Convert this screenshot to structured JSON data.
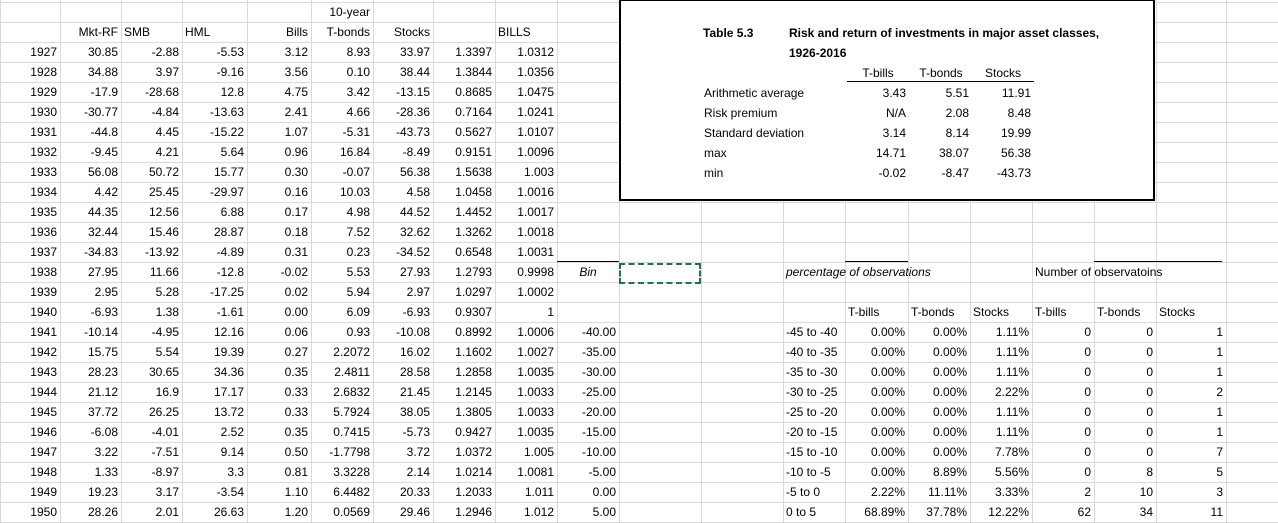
{
  "left_headers": {
    "super": "10-year",
    "cols": [
      "Mkt-RF",
      "SMB",
      "HML",
      "Bills",
      "T-bonds",
      "Stocks",
      "",
      "BILLS"
    ]
  },
  "left_rows": [
    [
      "1927",
      "30.85",
      "-2.88",
      "-5.53",
      "3.12",
      "8.93",
      "33.97",
      "1.3397",
      "1.0312",
      ""
    ],
    [
      "1928",
      "34.88",
      "3.97",
      "-9.16",
      "3.56",
      "0.10",
      "38.44",
      "1.3844",
      "1.0356",
      ""
    ],
    [
      "1929",
      "-17.9",
      "-28.68",
      "12.8",
      "4.75",
      "3.42",
      "-13.15",
      "0.8685",
      "1.0475",
      ""
    ],
    [
      "1930",
      "-30.77",
      "-4.84",
      "-13.63",
      "2.41",
      "4.66",
      "-28.36",
      "0.7164",
      "1.0241",
      ""
    ],
    [
      "1931",
      "-44.8",
      "4.45",
      "-15.22",
      "1.07",
      "-5.31",
      "-43.73",
      "0.5627",
      "1.0107",
      ""
    ],
    [
      "1932",
      "-9.45",
      "4.21",
      "5.64",
      "0.96",
      "16.84",
      "-8.49",
      "0.9151",
      "1.0096",
      ""
    ],
    [
      "1933",
      "56.08",
      "50.72",
      "15.77",
      "0.30",
      "-0.07",
      "56.38",
      "1.5638",
      "1.003",
      ""
    ],
    [
      "1934",
      "4.42",
      "25.45",
      "-29.97",
      "0.16",
      "10.03",
      "4.58",
      "1.0458",
      "1.0016",
      ""
    ],
    [
      "1935",
      "44.35",
      "12.56",
      "6.88",
      "0.17",
      "4.98",
      "44.52",
      "1.4452",
      "1.0017",
      ""
    ],
    [
      "1936",
      "32.44",
      "15.46",
      "28.87",
      "0.18",
      "7.52",
      "32.62",
      "1.3262",
      "1.0018",
      ""
    ],
    [
      "1937",
      "-34.83",
      "-13.92",
      "-4.89",
      "0.31",
      "0.23",
      "-34.52",
      "0.6548",
      "1.0031",
      ""
    ],
    [
      "1938",
      "27.95",
      "11.66",
      "-12.8",
      "-0.02",
      "5.53",
      "27.93",
      "1.2793",
      "0.9998",
      "Bin"
    ],
    [
      "1939",
      "2.95",
      "5.28",
      "-17.25",
      "0.02",
      "5.94",
      "2.97",
      "1.0297",
      "1.0002",
      ""
    ],
    [
      "1940",
      "-6.93",
      "1.38",
      "-1.61",
      "0.00",
      "6.09",
      "-6.93",
      "0.9307",
      "1",
      ""
    ],
    [
      "1941",
      "-10.14",
      "-4.95",
      "12.16",
      "0.06",
      "0.93",
      "-10.08",
      "0.8992",
      "1.0006",
      "-40.00"
    ],
    [
      "1942",
      "15.75",
      "5.54",
      "19.39",
      "0.27",
      "2.2072",
      "16.02",
      "1.1602",
      "1.0027",
      "-35.00"
    ],
    [
      "1943",
      "28.23",
      "30.65",
      "34.36",
      "0.35",
      "2.4811",
      "28.58",
      "1.2858",
      "1.0035",
      "-30.00"
    ],
    [
      "1944",
      "21.12",
      "16.9",
      "17.17",
      "0.33",
      "2.6832",
      "21.45",
      "1.2145",
      "1.0033",
      "-25.00"
    ],
    [
      "1945",
      "37.72",
      "26.25",
      "13.72",
      "0.33",
      "5.7924",
      "38.05",
      "1.3805",
      "1.0033",
      "-20.00"
    ],
    [
      "1946",
      "-6.08",
      "-4.01",
      "2.52",
      "0.35",
      "0.7415",
      "-5.73",
      "0.9427",
      "1.0035",
      "-15.00"
    ],
    [
      "1947",
      "3.22",
      "-7.51",
      "9.14",
      "0.50",
      "-1.7798",
      "3.72",
      "1.0372",
      "1.005",
      "-10.00"
    ],
    [
      "1948",
      "1.33",
      "-8.97",
      "3.3",
      "0.81",
      "3.3228",
      "2.14",
      "1.0214",
      "1.0081",
      "-5.00"
    ],
    [
      "1949",
      "19.23",
      "3.17",
      "-3.54",
      "1.10",
      "6.4482",
      "20.33",
      "1.2033",
      "1.011",
      "0.00"
    ],
    [
      "1950",
      "28.26",
      "2.01",
      "26.63",
      "1.20",
      "0.0569",
      "29.46",
      "1.2946",
      "1.012",
      "5.00"
    ]
  ],
  "table": {
    "id": "Table 5.3",
    "title_line1": "Risk and return of investments in major asset classes,",
    "title_line2": "1926-2016",
    "headers": [
      "T-bills",
      "T-bonds",
      "Stocks"
    ],
    "rows": [
      {
        "label": "Arithmetic average",
        "vals": [
          "3.43",
          "5.51",
          "11.91"
        ]
      },
      {
        "label": "Risk premium",
        "vals": [
          "N/A",
          "2.08",
          "8.48"
        ]
      },
      {
        "label": "Standard deviation",
        "vals": [
          "3.14",
          "8.14",
          "19.99"
        ]
      },
      {
        "label": "max",
        "vals": [
          "14.71",
          "38.07",
          "56.38"
        ]
      },
      {
        "label": "min",
        "vals": [
          "-0.02",
          "-8.47",
          "-43.73"
        ]
      }
    ]
  },
  "dist": {
    "pct_title": "percentage of observations",
    "num_title": "Number of observatoins",
    "headers": [
      "T-bills",
      "T-bonds",
      "Stocks",
      "T-bills",
      "T-bonds",
      "Stocks"
    ],
    "rows": [
      {
        "range": "-45 to -40",
        "p": [
          "0.00%",
          "0.00%",
          "1.11%"
        ],
        "n": [
          "0",
          "0",
          "1"
        ]
      },
      {
        "range": "-40 to -35",
        "p": [
          "0.00%",
          "0.00%",
          "1.11%"
        ],
        "n": [
          "0",
          "0",
          "1"
        ]
      },
      {
        "range": "-35 to -30",
        "p": [
          "0.00%",
          "0.00%",
          "1.11%"
        ],
        "n": [
          "0",
          "0",
          "1"
        ]
      },
      {
        "range": "-30 to -25",
        "p": [
          "0.00%",
          "0.00%",
          "2.22%"
        ],
        "n": [
          "0",
          "0",
          "2"
        ]
      },
      {
        "range": "-25 to -20",
        "p": [
          "0.00%",
          "0.00%",
          "1.11%"
        ],
        "n": [
          "0",
          "0",
          "1"
        ]
      },
      {
        "range": "-20 to -15",
        "p": [
          "0.00%",
          "0.00%",
          "1.11%"
        ],
        "n": [
          "0",
          "0",
          "1"
        ]
      },
      {
        "range": "-15 to -10",
        "p": [
          "0.00%",
          "0.00%",
          "7.78%"
        ],
        "n": [
          "0",
          "0",
          "7"
        ]
      },
      {
        "range": "-10 to -5",
        "p": [
          "0.00%",
          "8.89%",
          "5.56%"
        ],
        "n": [
          "0",
          "8",
          "5"
        ]
      },
      {
        "range": "-5 to 0",
        "p": [
          "2.22%",
          "11.11%",
          "3.33%"
        ],
        "n": [
          "2",
          "10",
          "3"
        ]
      },
      {
        "range": "0 to 5",
        "p": [
          "68.89%",
          "37.78%",
          "12.22%"
        ],
        "n": [
          "62",
          "34",
          "11"
        ]
      }
    ]
  }
}
